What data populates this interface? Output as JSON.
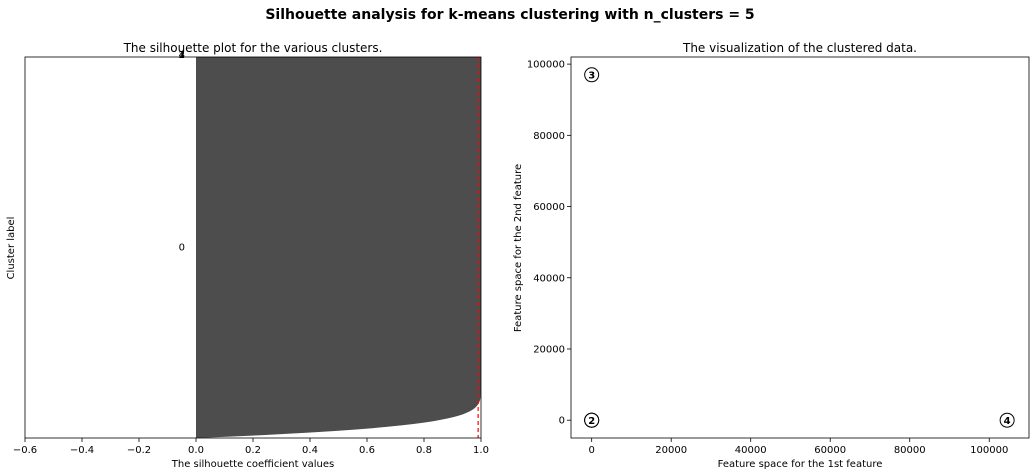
{
  "suptitle": "Silhouette analysis for k-means clustering with n_clusters = 5",
  "chart_data": [
    {
      "type": "area",
      "title": "The silhouette plot for the various clusters.",
      "xlabel": "The silhouette coefficient values",
      "ylabel": "Cluster label",
      "xlim": [
        -0.6,
        1.0
      ],
      "xticks": [
        -0.6,
        -0.4,
        -0.2,
        0.0,
        0.2,
        0.4,
        0.6,
        0.8,
        1.0
      ],
      "xtick_labels": [
        "−0.6",
        "−0.4",
        "−0.2",
        "0.0",
        "0.2",
        "0.4",
        "0.6",
        "0.8",
        "1.0"
      ],
      "average_silhouette": 0.99,
      "clusters": [
        {
          "label": "0",
          "silhouette_max": 1.0,
          "silhouette_min": 0.0,
          "color": "#4d4d4d"
        },
        {
          "label": "1",
          "silhouette_max": 0.0,
          "silhouette_min": 0.0
        },
        {
          "label": "2",
          "silhouette_max": 0.0,
          "silhouette_min": 0.0
        },
        {
          "label": "3",
          "silhouette_max": 0.0,
          "silhouette_min": 0.0
        },
        {
          "label": "4",
          "silhouette_max": 0.0,
          "silhouette_min": 0.0
        }
      ],
      "yticks": [],
      "avg_line_color": "#ff0000"
    },
    {
      "type": "scatter",
      "title": "The visualization of the clustered data.",
      "xlabel": "Feature space for the 1st feature",
      "ylabel": "Feature space for the 2nd feature",
      "xlim": [
        -5200,
        110000
      ],
      "ylim": [
        -5000,
        102000
      ],
      "xticks": [
        0,
        20000,
        40000,
        60000,
        80000,
        100000
      ],
      "xtick_labels": [
        "0",
        "20000",
        "40000",
        "60000",
        "80000",
        "100000"
      ],
      "yticks": [
        0,
        20000,
        40000,
        60000,
        80000,
        100000
      ],
      "ytick_labels": [
        "0",
        "20000",
        "40000",
        "60000",
        "80000",
        "100000"
      ],
      "centers": [
        {
          "label": "0",
          "x": 0,
          "y": 0
        },
        {
          "label": "1",
          "x": 0,
          "y": 0
        },
        {
          "label": "2",
          "x": 0,
          "y": 0
        },
        {
          "label": "3",
          "x": 0,
          "y": 97000
        },
        {
          "label": "4",
          "x": 104500,
          "y": 0
        }
      ]
    }
  ]
}
